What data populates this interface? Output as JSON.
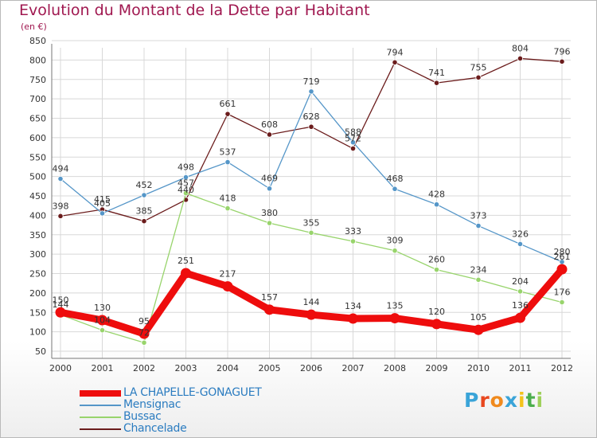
{
  "header": {
    "title": "Evolution du Montant de la Dette par Habitant",
    "subtitle": "(en €)"
  },
  "colors": {
    "title": "#a01850",
    "grid": "#d8d8d8",
    "axis_text": "#333333",
    "legend_text": "#2b7cc0"
  },
  "logo": {
    "letters": [
      "P",
      "r",
      "o",
      "x",
      "i",
      "t",
      "i"
    ],
    "colors": [
      "#3aa4d8",
      "#e8471e",
      "#f08a1e",
      "#3aa4d8",
      "#f3c31c",
      "#4cae4c",
      "#9ed05a"
    ]
  },
  "chart_data": {
    "type": "line",
    "x": [
      "2000",
      "2001",
      "2002",
      "2003",
      "2004",
      "2005",
      "2006",
      "2007",
      "2008",
      "2009",
      "2010",
      "2011",
      "2012"
    ],
    "ylim": [
      50,
      850
    ],
    "yticks": [
      50,
      100,
      150,
      200,
      250,
      300,
      350,
      400,
      450,
      500,
      550,
      600,
      650,
      700,
      750,
      800,
      850
    ],
    "grid": true,
    "legend_position": "bottom-left",
    "series": [
      {
        "name": "Chancelade",
        "color": "#6b1c1c",
        "values": [
          398,
          415,
          385,
          440,
          661,
          608,
          628,
          572,
          794,
          741,
          755,
          804,
          796
        ]
      },
      {
        "name": "Bussac",
        "color": "#98d46c",
        "values": [
          144,
          104,
          72,
          457,
          418,
          380,
          355,
          333,
          309,
          260,
          234,
          204,
          176
        ]
      },
      {
        "name": "Mensignac",
        "color": "#5596c8",
        "values": [
          494,
          405,
          452,
          498,
          537,
          469,
          719,
          588,
          468,
          428,
          373,
          326,
          280
        ]
      },
      {
        "name": "LA CHAPELLE-GONAGUET",
        "color": "#ee0d0d",
        "values": [
          150,
          130,
          95,
          251,
          217,
          157,
          144,
          134,
          135,
          120,
          105,
          136,
          261
        ]
      }
    ]
  },
  "legend": [
    {
      "name": "LA CHAPELLE-GONAGUET",
      "color": "#ee0d0d"
    },
    {
      "name": "Mensignac",
      "color": "#5596c8"
    },
    {
      "name": "Bussac",
      "color": "#98d46c"
    },
    {
      "name": "Chancelade",
      "color": "#6b1c1c"
    }
  ]
}
